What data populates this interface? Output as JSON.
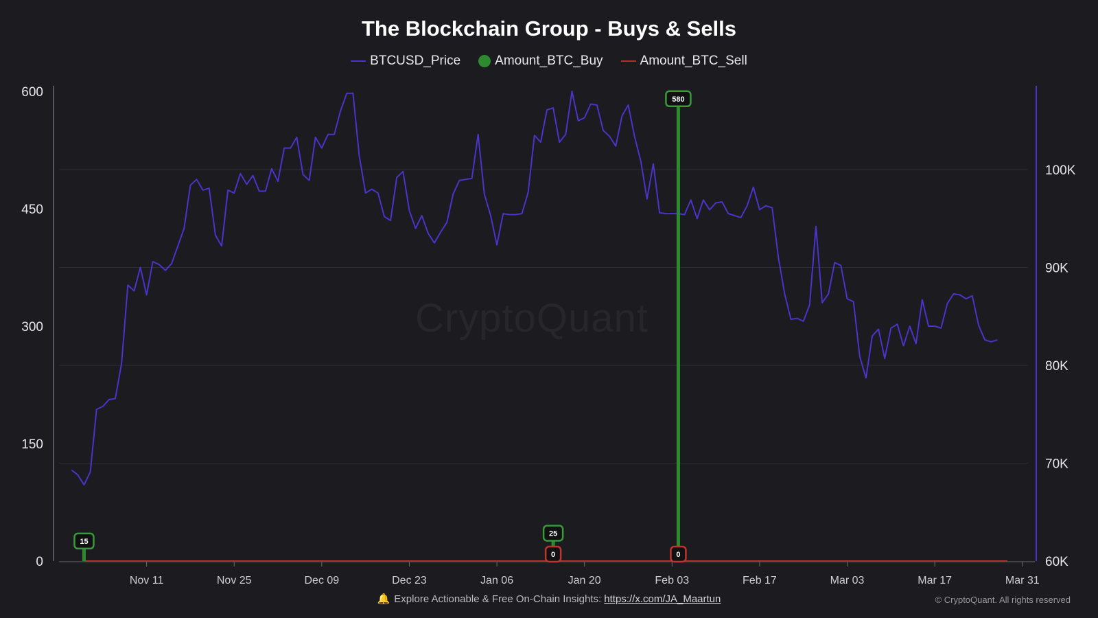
{
  "title": "The Blockchain Group - Buys & Sells",
  "legend": {
    "price": "BTCUSD_Price",
    "buy": "Amount_BTC_Buy",
    "sell": "Amount_BTC_Sell"
  },
  "colors": {
    "background": "#1b1b20",
    "price": "#4a34c9",
    "buy": "#2e8a2e",
    "sell": "#b0302e",
    "grid": "#2c2c33",
    "axis": "#6b6b75"
  },
  "watermark": "CryptoQuant",
  "footer": {
    "text": "Explore Actionable & Free On-Chain Insights:",
    "link": "https://x.com/JA_Maartun",
    "copyright": "© CryptoQuant. All rights reserved",
    "icon": "bell-icon"
  },
  "chart_data": {
    "type": "line",
    "x_range": [
      "2024-10-28",
      "2025-04-02"
    ],
    "x_ticks": [
      {
        "date": "2024-11-11",
        "label": "Nov 11"
      },
      {
        "date": "2024-11-25",
        "label": "Nov 25"
      },
      {
        "date": "2024-12-09",
        "label": "Dec 09"
      },
      {
        "date": "2024-12-23",
        "label": "Dec 23"
      },
      {
        "date": "2025-01-06",
        "label": "Jan 06"
      },
      {
        "date": "2025-01-20",
        "label": "Jan 20"
      },
      {
        "date": "2025-02-03",
        "label": "Feb 03"
      },
      {
        "date": "2025-02-17",
        "label": "Feb 17"
      },
      {
        "date": "2025-03-03",
        "label": "Mar 03"
      },
      {
        "date": "2025-03-17",
        "label": "Mar 17"
      },
      {
        "date": "2025-03-31",
        "label": "Mar 31"
      }
    ],
    "y_left": {
      "min": 0,
      "max": 600,
      "ticks": [
        0,
        150,
        300,
        450,
        600
      ]
    },
    "y_right": {
      "min": 60000,
      "max": 108000,
      "ticks": [
        {
          "value": 60000,
          "label": "60K"
        },
        {
          "value": 70000,
          "label": "70K"
        },
        {
          "value": 80000,
          "label": "80K"
        },
        {
          "value": 90000,
          "label": "90K"
        },
        {
          "value": 100000,
          "label": "100K"
        }
      ]
    },
    "grid": true,
    "legend_position": "top-center",
    "price_series": {
      "name": "BTCUSD_Price",
      "start_date": "2024-10-30",
      "step_days": 1,
      "values": [
        69300,
        68800,
        67800,
        69100,
        75500,
        75800,
        76500,
        76600,
        80200,
        88200,
        87600,
        90000,
        87200,
        90600,
        90300,
        89700,
        90400,
        92200,
        94000,
        98400,
        99000,
        97900,
        98100,
        93300,
        92200,
        97900,
        97600,
        99600,
        98500,
        99400,
        97800,
        97800,
        100100,
        98800,
        102200,
        102200,
        103300,
        99500,
        98900,
        103300,
        102200,
        103600,
        103600,
        106000,
        107800,
        107800,
        101400,
        97600,
        98000,
        97600,
        95200,
        94800,
        99200,
        99800,
        95800,
        94000,
        95300,
        93500,
        92500,
        93600,
        94600,
        97500,
        98900,
        99000,
        99100,
        103600,
        97500,
        95300,
        92300,
        95500,
        95400,
        95400,
        95500,
        97700,
        103500,
        102800,
        106100,
        106300,
        102800,
        103600,
        108000,
        105000,
        105300,
        106700,
        106600,
        104000,
        103400,
        102400,
        105500,
        106600,
        103400,
        100900,
        97000,
        100600,
        95600,
        95500,
        95500,
        95500,
        95400,
        96900,
        95000,
        96900,
        95900,
        96600,
        96700,
        95500,
        95300,
        95100,
        96300,
        98200,
        95900,
        96300,
        96100,
        91000,
        87300,
        84700,
        84800,
        84500,
        86200,
        94200,
        86400,
        87300,
        90500,
        90200,
        86800,
        86500,
        80900,
        78700,
        83000,
        83700,
        80700,
        83800,
        84200,
        82000,
        84000,
        82200,
        86700,
        84000,
        84000,
        83800,
        86300,
        87300,
        87200,
        86800,
        87100,
        84100,
        82600,
        82400,
        82600
      ]
    },
    "buy_series": {
      "name": "Amount_BTC_Buy",
      "points": [
        {
          "date": "2024-11-01",
          "value": 15
        },
        {
          "date": "2025-01-15",
          "value": 25
        },
        {
          "date": "2025-02-04",
          "value": 580
        }
      ]
    },
    "sell_series": {
      "name": "Amount_BTC_Sell",
      "points": [
        {
          "date": "2025-01-15",
          "value": 0
        },
        {
          "date": "2025-02-04",
          "value": 0
        }
      ]
    }
  }
}
